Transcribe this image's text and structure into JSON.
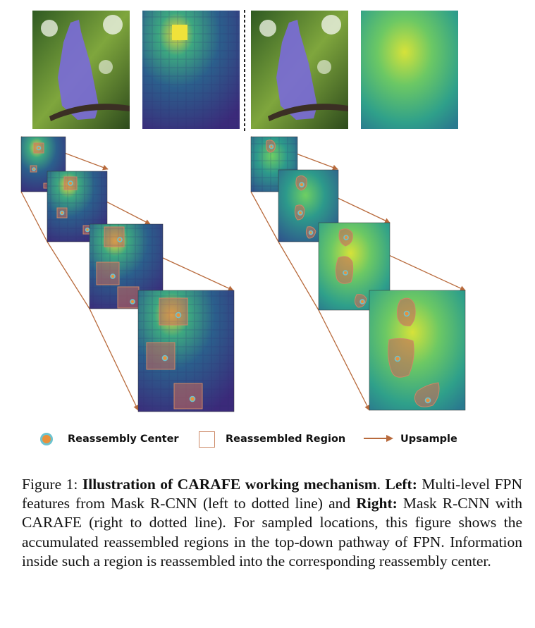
{
  "legend": {
    "center_label": "Reassembly Center",
    "region_label": "Reassembled Region",
    "upsample_label": "Upsample",
    "colors": {
      "center_fill": "#e9903a",
      "center_ring": "#6cc3cf",
      "region_border": "#cc8866",
      "arrow": "#b86a3c"
    }
  },
  "caption": {
    "figure_label": "Figure 1:",
    "title": "Illustration of CARAFE working mechanism",
    "left_label": "Left:",
    "left_text": "Multi-level FPN features from Mask R-CNN (left to dotted line) and",
    "right_label": "Right:",
    "right_text": "Mask R-CNN with CARAFE (right to dotted line). For sampled locations, this figure shows the accumulated reassembled regions in the top-down pathway of FPN. Information inside such a region is reassembled into the corresponding reassembly center."
  },
  "images": [
    "bird-photo-with-purple-mask-left",
    "fpn-feature-heatmap-left",
    "bird-photo-with-purple-mask-right",
    "carafe-feature-heatmap-right"
  ]
}
